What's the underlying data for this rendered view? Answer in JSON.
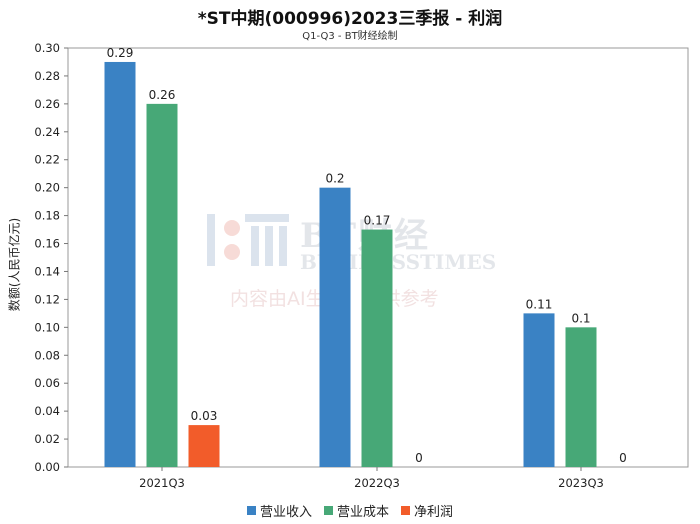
{
  "chart_data": {
    "type": "bar",
    "title": "*ST中期(000996)2023三季报 - 利润",
    "subtitle": "Q1-Q3 - BT财经绘制",
    "ylabel": "数额(人民币亿元)",
    "xlabel": "",
    "categories": [
      "2021Q3",
      "2022Q3",
      "2023Q3"
    ],
    "ylim": [
      0,
      0.3
    ],
    "yticks": [
      "0.00",
      "0.02",
      "0.04",
      "0.06",
      "0.08",
      "0.10",
      "0.12",
      "0.14",
      "0.16",
      "0.18",
      "0.20",
      "0.22",
      "0.24",
      "0.26",
      "0.28",
      "0.30"
    ],
    "grid": false,
    "legend_position": "bottom",
    "series": [
      {
        "name": "营业收入",
        "color": "#3a82c4",
        "values": [
          0.29,
          0.2,
          0.11
        ],
        "labels": [
          "0.29",
          "0.2",
          "0.11"
        ]
      },
      {
        "name": "营业成本",
        "color": "#47a877",
        "values": [
          0.26,
          0.17,
          0.1
        ],
        "labels": [
          "0.26",
          "0.17",
          "0.1"
        ]
      },
      {
        "name": "净利润",
        "color": "#f25c2a",
        "values": [
          0.03,
          0,
          0
        ],
        "labels": [
          "0.03",
          "0",
          "0"
        ]
      }
    ]
  },
  "watermark": {
    "brand": "BT财经",
    "brand_en": "BUSINESSTIMES",
    "note": "内容由AI生成，仅供参考"
  }
}
